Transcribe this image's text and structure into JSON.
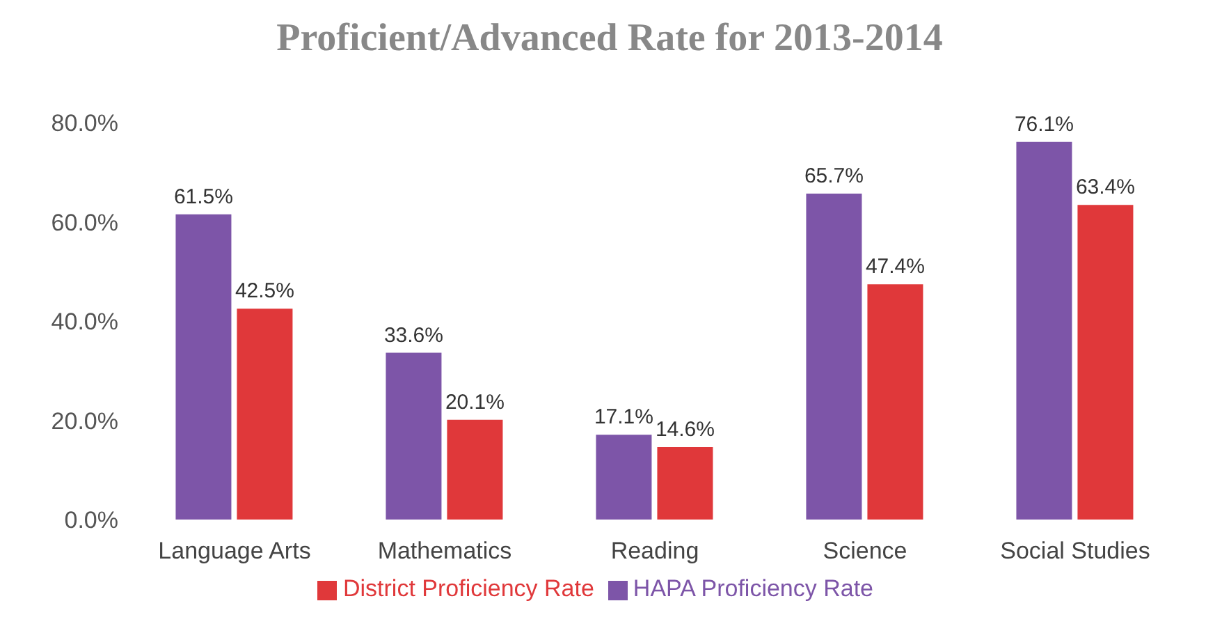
{
  "chart_data": {
    "type": "bar",
    "title": "Proficient/Advanced Rate for 2013-2014",
    "categories": [
      "Language Arts",
      "Mathematics",
      "Reading",
      "Science",
      "Social Studies"
    ],
    "series": [
      {
        "name": "HAPA Proficiency Rate",
        "color": "#7d55a8",
        "values": [
          61.5,
          33.6,
          17.1,
          65.7,
          76.1
        ],
        "value_labels": [
          "61.5%",
          "33.6%",
          "17.1%",
          "65.7%",
          "76.1%"
        ]
      },
      {
        "name": "District Proficiency Rate",
        "color": "#e0383a",
        "values": [
          42.5,
          20.1,
          14.6,
          47.4,
          63.4
        ],
        "value_labels": [
          "42.5%",
          "20.1%",
          "14.6%",
          "47.4%",
          "63.4%"
        ]
      }
    ],
    "ylim": [
      0,
      80
    ],
    "yticks": [
      {
        "value": 0,
        "label": "0.0%"
      },
      {
        "value": 20,
        "label": "20.0%"
      },
      {
        "value": 40,
        "label": "40.0%"
      },
      {
        "value": 60,
        "label": "60.0%"
      },
      {
        "value": 80,
        "label": "80.0%"
      }
    ],
    "grid": false,
    "legend": "bottom"
  }
}
